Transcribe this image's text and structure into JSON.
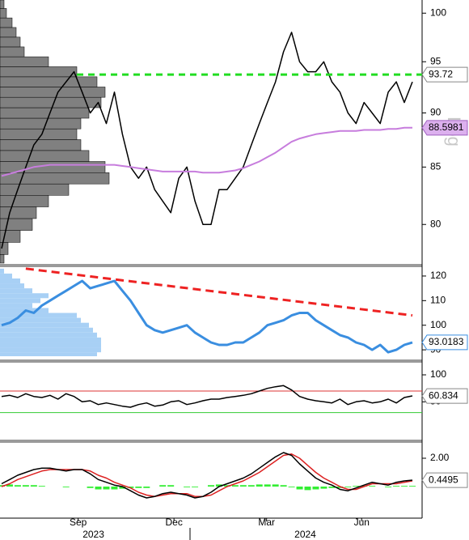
{
  "chart_data": [
    {
      "type": "line",
      "log_scale": true,
      "scale_label": "Log",
      "ylim": [
        76.8,
        101.4
      ],
      "yticks": [
        80,
        85,
        90,
        95,
        100
      ],
      "series": [
        {
          "color": "#000000",
          "values": [
            78,
            81,
            83,
            85,
            87,
            88,
            90,
            92,
            93,
            94,
            92,
            90,
            91,
            89,
            92,
            88,
            85,
            84,
            85,
            83,
            82,
            81,
            84,
            85,
            82,
            80,
            80,
            83,
            83,
            84,
            85,
            87,
            89,
            91,
            93,
            96,
            98,
            95,
            94,
            94,
            95,
            93,
            92,
            90,
            89,
            91,
            90,
            89,
            92,
            93,
            91,
            93
          ]
        },
        {
          "color": "#c77ddd",
          "values": [
            84.2,
            84.4,
            84.6,
            84.8,
            85,
            85.1,
            85.2,
            85.2,
            85.2,
            85.2,
            85.2,
            85.2,
            85.2,
            85.2,
            85.2,
            85.1,
            85,
            84.9,
            84.8,
            84.7,
            84.6,
            84.6,
            84.6,
            84.6,
            84.6,
            84.5,
            84.5,
            84.5,
            84.6,
            84.7,
            84.9,
            85.2,
            85.5,
            85.9,
            86.3,
            86.8,
            87.3,
            87.6,
            87.8,
            88,
            88.1,
            88.2,
            88.3,
            88.3,
            88.3,
            88.4,
            88.4,
            88.4,
            88.5,
            88.5,
            88.6,
            88.6
          ]
        }
      ],
      "tags": [
        {
          "value": 93.72,
          "fill": "#ffffff",
          "stroke": "#888888",
          "line_color": "#22dd22"
        },
        {
          "value": 88.5981,
          "fill": "#dcb0ee",
          "stroke": "#a060c0"
        }
      ],
      "profile": {
        "color": "#808080",
        "xlim": [
          0,
          140
        ],
        "levels": [
          77,
          78,
          79,
          80,
          81,
          82,
          83,
          84,
          85,
          86,
          87,
          88,
          89,
          90,
          91,
          92,
          93,
          94,
          95,
          96,
          97,
          98,
          99,
          100,
          101
        ],
        "values": [
          5,
          10,
          25,
          40,
          45,
          60,
          85,
          135,
          130,
          110,
          100,
          95,
          100,
          110,
          125,
          130,
          120,
          95,
          60,
          30,
          25,
          20,
          15,
          8,
          5
        ]
      }
    },
    {
      "type": "line",
      "ylim": [
        87.4,
        123.6
      ],
      "yticks": [
        90,
        100,
        110,
        120
      ],
      "series": [
        {
          "color": "#3a8ee0",
          "values": [
            100,
            101,
            103,
            106,
            105,
            108,
            110,
            112,
            114,
            116,
            118,
            115,
            116,
            117,
            118,
            114,
            110,
            105,
            100,
            98,
            97,
            98,
            99,
            100,
            97,
            95,
            93,
            92,
            92,
            93,
            93,
            95,
            97,
            100,
            101,
            102,
            104,
            105,
            105,
            102,
            100,
            98,
            96,
            95,
            93,
            92,
            90,
            92,
            89,
            90,
            92,
            93
          ]
        }
      ],
      "trendline": {
        "color": "#ee2222",
        "x": [
          3,
          51
        ],
        "values": [
          123,
          104
        ]
      },
      "tags": [
        {
          "value": 93.0183,
          "fill": "#ffffff",
          "stroke": "#3a8ee0"
        }
      ],
      "profile": {
        "color": "#a8d0f5",
        "xlim": [
          0,
          140
        ],
        "levels": [
          88,
          90,
          92,
          94,
          96,
          98,
          100,
          102,
          104,
          106,
          108,
          110,
          112,
          114,
          116,
          118,
          120,
          122
        ],
        "values": [
          120,
          125,
          125,
          125,
          120,
          115,
          110,
          100,
          95,
          60,
          40,
          50,
          60,
          40,
          30,
          25,
          15,
          5
        ]
      }
    },
    {
      "type": "line",
      "ylim": [
        -15.5,
        116.5
      ],
      "yticks": [
        100,
        50
      ],
      "series": [
        {
          "color": "#000000",
          "values": [
            60,
            62,
            58,
            65,
            60,
            58,
            62,
            55,
            65,
            60,
            50,
            52,
            45,
            48,
            45,
            42,
            40,
            45,
            48,
            42,
            44,
            50,
            52,
            45,
            48,
            52,
            55,
            55,
            58,
            60,
            62,
            65,
            70,
            75,
            78,
            80,
            72,
            60,
            55,
            52,
            50,
            48,
            55,
            45,
            50,
            52,
            48,
            50,
            55,
            48,
            58,
            61
          ]
        }
      ],
      "ref_lines": [
        {
          "value": 70,
          "color": "#dd3333"
        },
        {
          "value": 30,
          "color": "#33cc33"
        }
      ],
      "tags": [
        {
          "value": 60.834,
          "fill": "#ffffff",
          "stroke": "#888888"
        }
      ]
    },
    {
      "type": "line",
      "ylim": [
        -2.23,
        3.03
      ],
      "yticks": [
        {
          "value": 2,
          "label": "2.00"
        }
      ],
      "histogram": {
        "color": "#33ee33",
        "values": [
          0.1,
          0.15,
          0.1,
          0.1,
          0.1,
          0.05,
          0,
          0,
          -0.05,
          0,
          0,
          -0.1,
          -0.2,
          -0.2,
          -0.2,
          -0.15,
          -0.1,
          -0.1,
          -0.1,
          0,
          0.1,
          0.1,
          0,
          -0.05,
          -0.05,
          0,
          0.1,
          0.15,
          0.1,
          0.1,
          0.1,
          0.1,
          0.15,
          0.15,
          0.15,
          0.1,
          -0.05,
          -0.2,
          -0.25,
          -0.2,
          -0.15,
          -0.1,
          -0.1,
          -0.05,
          0.05,
          0.05,
          0.05,
          0,
          -0.05,
          0.05,
          0.05,
          0.05
        ]
      },
      "series": [
        {
          "color": "#dd2222",
          "values": [
            0,
            0.2,
            0.5,
            0.7,
            0.9,
            1.1,
            1.2,
            1.2,
            1.2,
            1.2,
            1.2,
            1.1,
            0.8,
            0.6,
            0.3,
            0.1,
            -0.1,
            -0.4,
            -0.6,
            -0.7,
            -0.6,
            -0.5,
            -0.5,
            -0.5,
            -0.7,
            -0.7,
            -0.6,
            -0.3,
            0,
            0.2,
            0.4,
            0.7,
            1.0,
            1.4,
            1.8,
            2.2,
            2.3,
            2.0,
            1.5,
            1.0,
            0.6,
            0.3,
            0,
            -0.2,
            -0.2,
            0,
            0.2,
            0.2,
            0.2,
            0.2,
            0.3,
            0.4
          ]
        },
        {
          "color": "#000000",
          "values": [
            0.2,
            0.5,
            0.8,
            1.0,
            1.2,
            1.3,
            1.3,
            1.2,
            1.1,
            1.2,
            1.2,
            0.9,
            0.5,
            0.3,
            0.1,
            0,
            -0.3,
            -0.6,
            -0.8,
            -0.7,
            -0.5,
            -0.4,
            -0.5,
            -0.6,
            -0.8,
            -0.7,
            -0.4,
            0,
            0.2,
            0.4,
            0.6,
            0.9,
            1.3,
            1.7,
            2.1,
            2.4,
            2.2,
            1.6,
            1.1,
            0.6,
            0.3,
            0.1,
            -0.2,
            -0.3,
            -0.1,
            0.1,
            0.3,
            0.2,
            0.1,
            0.3,
            0.4,
            0.45
          ]
        }
      ],
      "tags": [
        {
          "value": 0.4495,
          "fill": "#ffffff",
          "stroke": "#888888"
        }
      ],
      "xticks": [
        {
          "value": 9.5,
          "label": "Sep"
        },
        {
          "value": 21.4,
          "label": "Dec"
        },
        {
          "value": 32.9,
          "label": "Mar"
        },
        {
          "value": 44.7,
          "label": "Jun"
        }
      ],
      "year_labels": [
        {
          "value": 11.4,
          "label": "2023"
        },
        {
          "value": 37.7,
          "label": "2024"
        }
      ]
    }
  ]
}
